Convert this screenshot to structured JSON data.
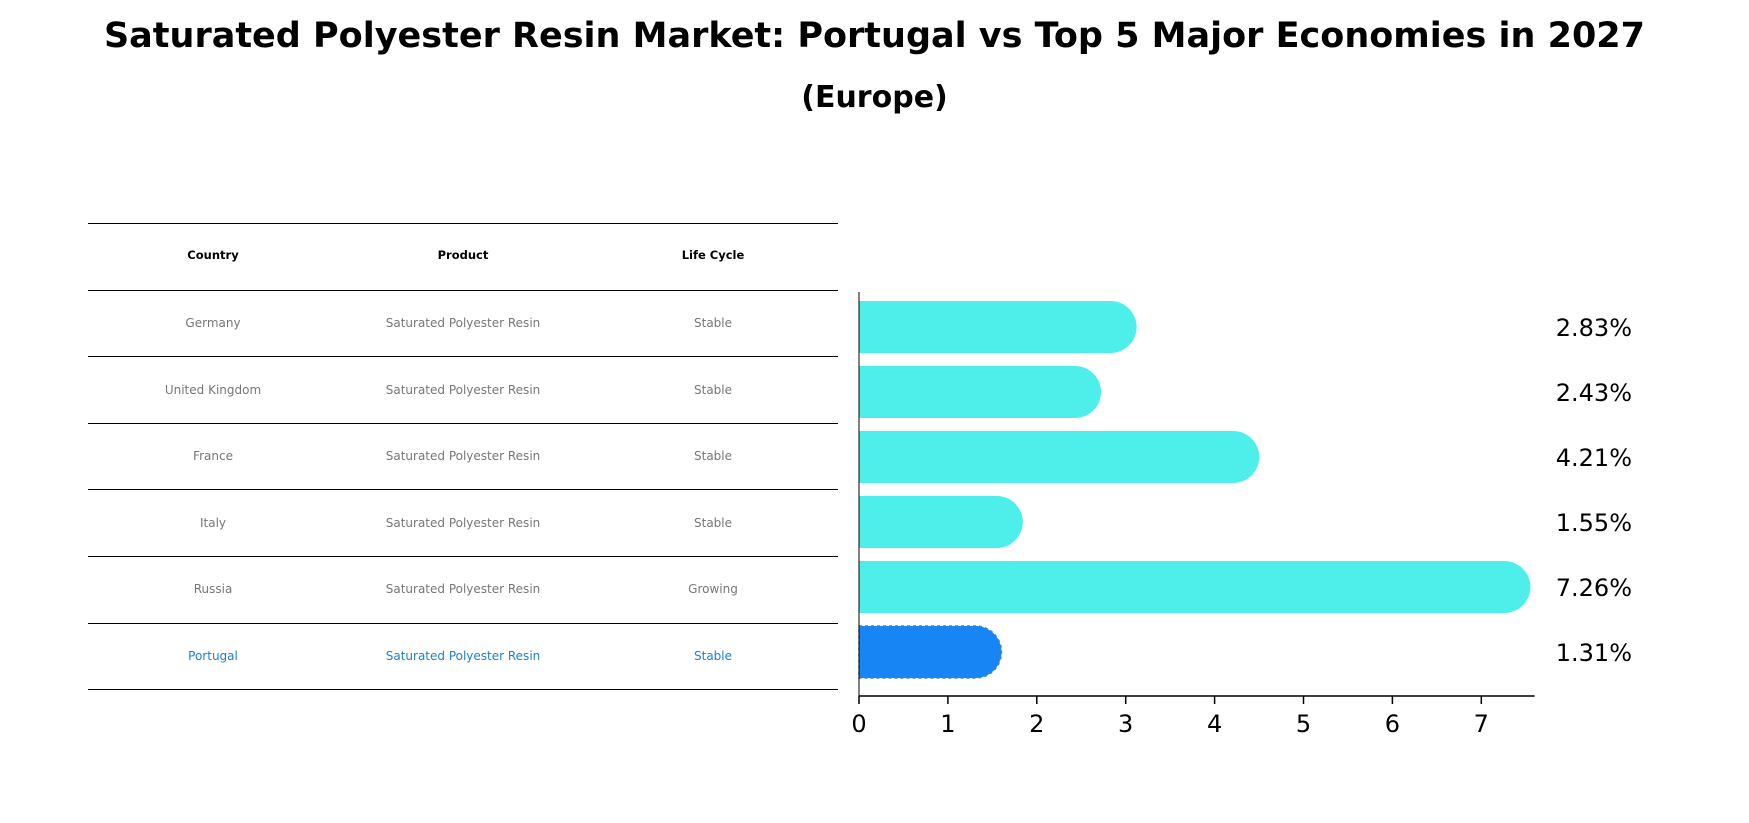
{
  "title": "Saturated Polyester Resin Market: Portugal vs Top 5 Major Economies in 2027",
  "subtitle": "(Europe)",
  "table": {
    "headers": [
      "Country",
      "Product",
      "Life Cycle"
    ],
    "rows": [
      {
        "country": "Germany",
        "product": "Saturated Polyester Resin",
        "life_cycle": "Stable"
      },
      {
        "country": "United Kingdom",
        "product": "Saturated Polyester Resin",
        "life_cycle": "Stable"
      },
      {
        "country": "France",
        "product": "Saturated Polyester Resin",
        "life_cycle": "Stable"
      },
      {
        "country": "Italy",
        "product": "Saturated Polyester Resin",
        "life_cycle": "Stable"
      },
      {
        "country": "Russia",
        "product": "Saturated Polyester Resin",
        "life_cycle": "Growing"
      },
      {
        "country": "Portugal",
        "product": "Saturated Polyester Resin",
        "life_cycle": "Stable"
      }
    ],
    "highlight_color": "#1a7fd4",
    "text_color": "#777777"
  },
  "chart_data": {
    "type": "bar",
    "orientation": "horizontal",
    "categories": [
      "Germany",
      "United Kingdom",
      "France",
      "Italy",
      "Russia",
      "Portugal"
    ],
    "values": [
      2.83,
      2.43,
      4.21,
      1.55,
      7.26,
      1.31
    ],
    "value_labels": [
      "2.83%",
      "2.43%",
      "4.21%",
      "1.55%",
      "7.26%",
      "1.31%"
    ],
    "x_ticks": [
      "0",
      "1",
      "2",
      "3",
      "4",
      "5",
      "6",
      "7"
    ],
    "xlim": [
      0,
      7.6
    ],
    "highlight": "Portugal",
    "colors": {
      "default": "#4eeeea",
      "highlight": "#1786f4"
    },
    "grid": false
  }
}
